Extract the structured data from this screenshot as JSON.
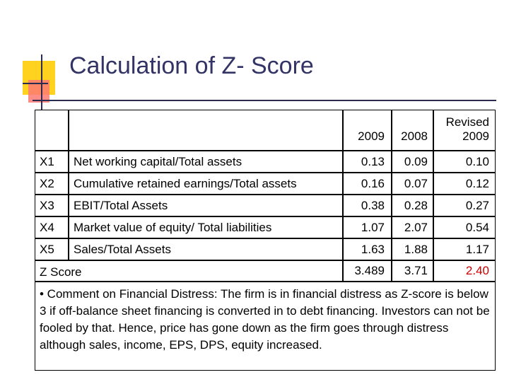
{
  "title": "Calculation of Z- Score",
  "table": {
    "headers": {
      "col1": "2009",
      "col2": "2008",
      "col3_line1": "Revised",
      "col3_line2": "2009"
    },
    "rows": [
      {
        "code": "X1",
        "label": "Net working capital/Total assets",
        "v2009": "0.13",
        "v2008": "0.09",
        "revised": "0.10"
      },
      {
        "code": "X2",
        "label": "Cumulative retained earnings/Total assets",
        "v2009": "0.16",
        "v2008": "0.07",
        "revised": "0.12"
      },
      {
        "code": "X3",
        "label": "EBIT/Total Assets",
        "v2009": "0.38",
        "v2008": "0.28",
        "revised": "0.27"
      },
      {
        "code": "X4",
        "label": "Market value of equity/ Total liabilities",
        "v2009": "1.07",
        "v2008": "2.07",
        "revised": "0.54"
      },
      {
        "code": "X5",
        "label": "Sales/Total Assets",
        "v2009": "1.63",
        "v2008": "1.88",
        "revised": "1.17"
      }
    ],
    "z_score": {
      "label": "Z Score",
      "v2009": "3.489",
      "v2008": "3.71",
      "revised": "2.40",
      "revised_color": "#cc0000"
    }
  },
  "comment": "• Comment on Financial Distress: The firm is in financial distress as Z-score is below 3 if off-balance sheet financing is converted in to debt financing. Investors can not be fooled by that. Hence, price has gone down as the firm goes through distress although sales, income, EPS, DPS, equity increased."
}
